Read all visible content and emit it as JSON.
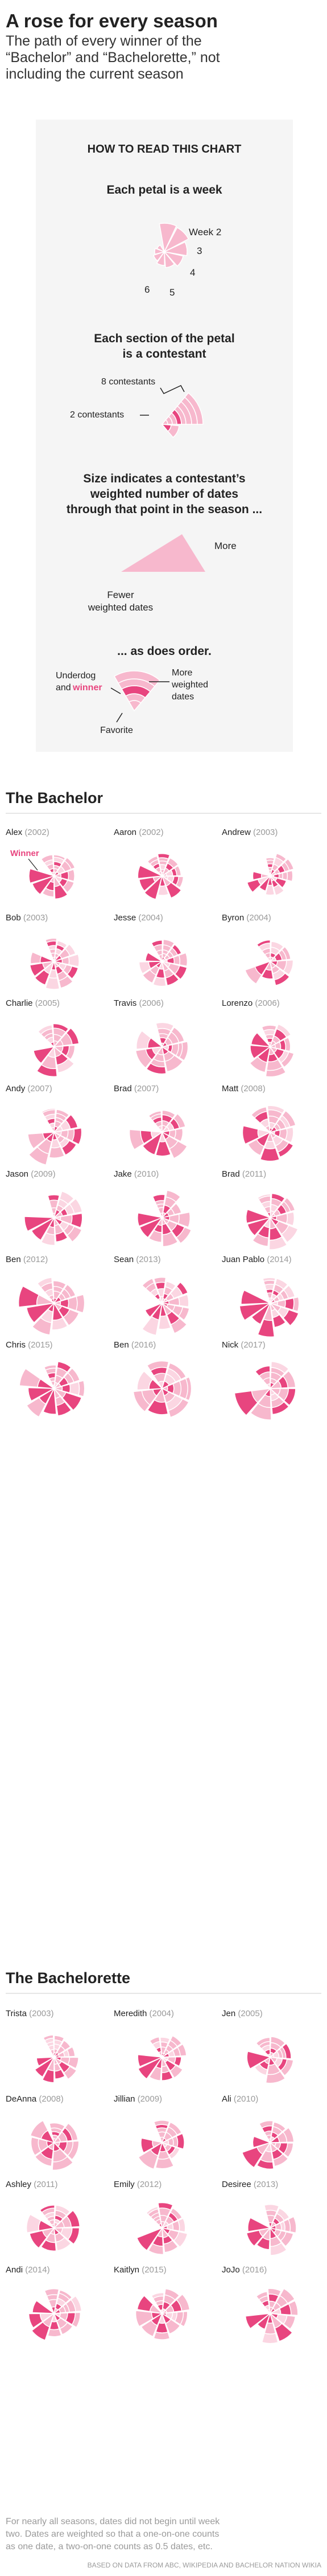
{
  "header": {
    "title": "A rose for every season",
    "subtitle_lines": [
      "The path of every winner of the",
      "“Bachelor” and “Bachelorette,” not",
      "including the current season"
    ]
  },
  "legend": {
    "heading": "HOW TO READ THIS CHART",
    "week": {
      "title": "Each petal is a week",
      "labels": [
        "Week 2",
        "3",
        "4",
        "5",
        "6"
      ]
    },
    "section": {
      "title_lines": [
        "Each section of the petal",
        "is a contestant"
      ],
      "label_8": "8 contestants",
      "label_2": "2 contestants"
    },
    "size": {
      "title_lines": [
        "Size indicates a contestant’s",
        "weighted number of dates",
        "through that point in the season ..."
      ],
      "more": "More",
      "fewer_lines": [
        "Fewer",
        "weighted dates"
      ]
    },
    "order": {
      "title": "... as does order.",
      "underdog_lines": [
        "Underdog",
        "and"
      ],
      "winner": "winner",
      "more_lines": [
        "More",
        "weighted",
        "dates"
      ],
      "favorite": "Favorite"
    }
  },
  "sections": {
    "bachelor": "The Bachelor",
    "bachelorette": "The Bachelorette"
  },
  "winner_label": "Winner",
  "chart_data": [
    {
      "type": "radial-petal",
      "title": "The Bachelor",
      "seasons": [
        {
          "name": "Alex",
          "year": "2002"
        },
        {
          "name": "Aaron",
          "year": "2002"
        },
        {
          "name": "Andrew",
          "year": "2003"
        },
        {
          "name": "Bob",
          "year": "2003"
        },
        {
          "name": "Jesse",
          "year": "2004"
        },
        {
          "name": "Byron",
          "year": "2004"
        },
        {
          "name": "Charlie",
          "year": "2005"
        },
        {
          "name": "Travis",
          "year": "2006"
        },
        {
          "name": "Lorenzo",
          "year": "2006"
        },
        {
          "name": "Andy",
          "year": "2007"
        },
        {
          "name": "Brad",
          "year": "2007"
        },
        {
          "name": "Matt",
          "year": "2008"
        },
        {
          "name": "Jason",
          "year": "2009"
        },
        {
          "name": "Jake",
          "year": "2010"
        },
        {
          "name": "Brad",
          "year": "2011"
        },
        {
          "name": "Ben",
          "year": "2012"
        },
        {
          "name": "Sean",
          "year": "2013"
        },
        {
          "name": "Juan Pablo",
          "year": "2014"
        },
        {
          "name": "Chris",
          "year": "2015"
        },
        {
          "name": "Ben",
          "year": "2016"
        },
        {
          "name": "Nick",
          "year": "2017"
        }
      ]
    },
    {
      "type": "radial-petal",
      "title": "The Bachelorette",
      "seasons": [
        {
          "name": "Trista",
          "year": "2003"
        },
        {
          "name": "Meredith",
          "year": "2004"
        },
        {
          "name": "Jen",
          "year": "2005"
        },
        {
          "name": "DeAnna",
          "year": "2008"
        },
        {
          "name": "Jillian",
          "year": "2009"
        },
        {
          "name": "Ali",
          "year": "2010"
        },
        {
          "name": "Ashley",
          "year": "2011"
        },
        {
          "name": "Emily",
          "year": "2012"
        },
        {
          "name": "Desiree",
          "year": "2013"
        },
        {
          "name": "Andi",
          "year": "2014"
        },
        {
          "name": "Kaitlyn",
          "year": "2015"
        },
        {
          "name": "JoJo",
          "year": "2016"
        }
      ]
    }
  ],
  "footer": {
    "note_lines": [
      "For nearly all seasons, dates did not begin until week",
      "two. Dates are weighted so that a one-on-one counts",
      "as one date, a two-on-one counts as 0.5 dates, etc."
    ],
    "source": "BASED ON DATA FROM ABC, WIKIPEDIA AND BACHELOR NATION WIKIA"
  },
  "colors": {
    "winner": "#e8457f",
    "light": "#f7b8cd",
    "pale": "#fbd6e2",
    "text": "#222222",
    "muted": "#888888",
    "legend_bg": "#f5f5f5"
  }
}
